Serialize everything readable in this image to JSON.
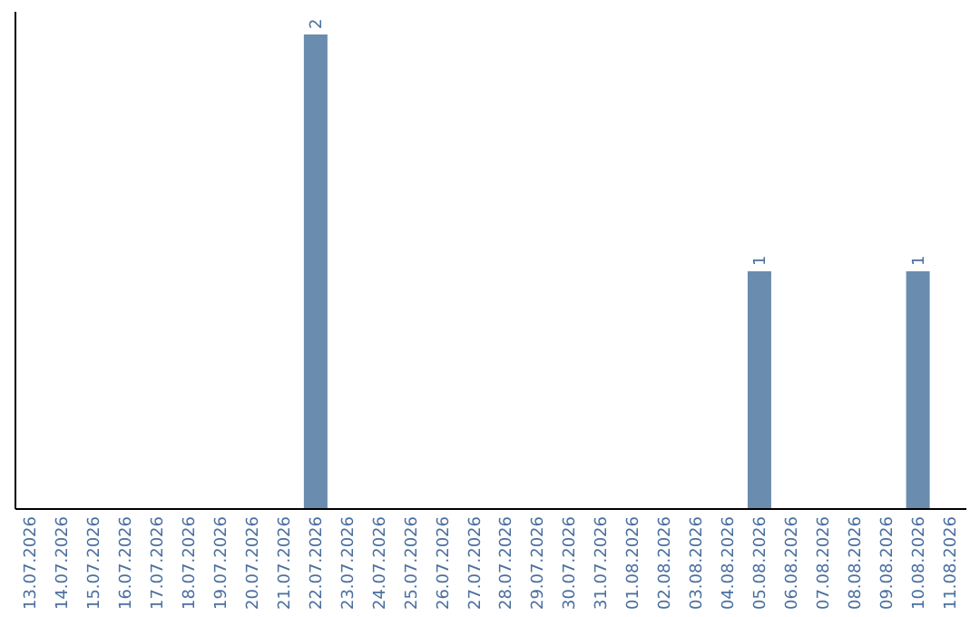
{
  "chart_data": {
    "type": "bar",
    "categories": [
      "13.07.2026",
      "14.07.2026",
      "15.07.2026",
      "16.07.2026",
      "17.07.2026",
      "18.07.2026",
      "19.07.2026",
      "20.07.2026",
      "21.07.2026",
      "22.07.2026",
      "23.07.2026",
      "24.07.2026",
      "25.07.2026",
      "26.07.2026",
      "27.07.2026",
      "28.07.2026",
      "29.07.2026",
      "30.07.2026",
      "31.07.2026",
      "01.08.2026",
      "02.08.2026",
      "03.08.2026",
      "04.08.2026",
      "05.08.2026",
      "06.08.2026",
      "07.08.2026",
      "08.08.2026",
      "09.08.2026",
      "10.08.2026",
      "11.08.2026"
    ],
    "values": [
      0,
      0,
      0,
      0,
      0,
      0,
      0,
      0,
      0,
      2,
      0,
      0,
      0,
      0,
      0,
      0,
      0,
      0,
      0,
      0,
      0,
      0,
      0,
      1,
      0,
      0,
      0,
      0,
      1,
      0
    ],
    "value_labels": [
      null,
      null,
      null,
      null,
      null,
      null,
      null,
      null,
      null,
      "2",
      null,
      null,
      null,
      null,
      null,
      null,
      null,
      null,
      null,
      null,
      null,
      null,
      null,
      "1",
      null,
      null,
      null,
      null,
      "1",
      null
    ],
    "color": "#6a8caf",
    "ylim": [
      0,
      2.1
    ],
    "tick_labels": "x",
    "grid": false
  }
}
